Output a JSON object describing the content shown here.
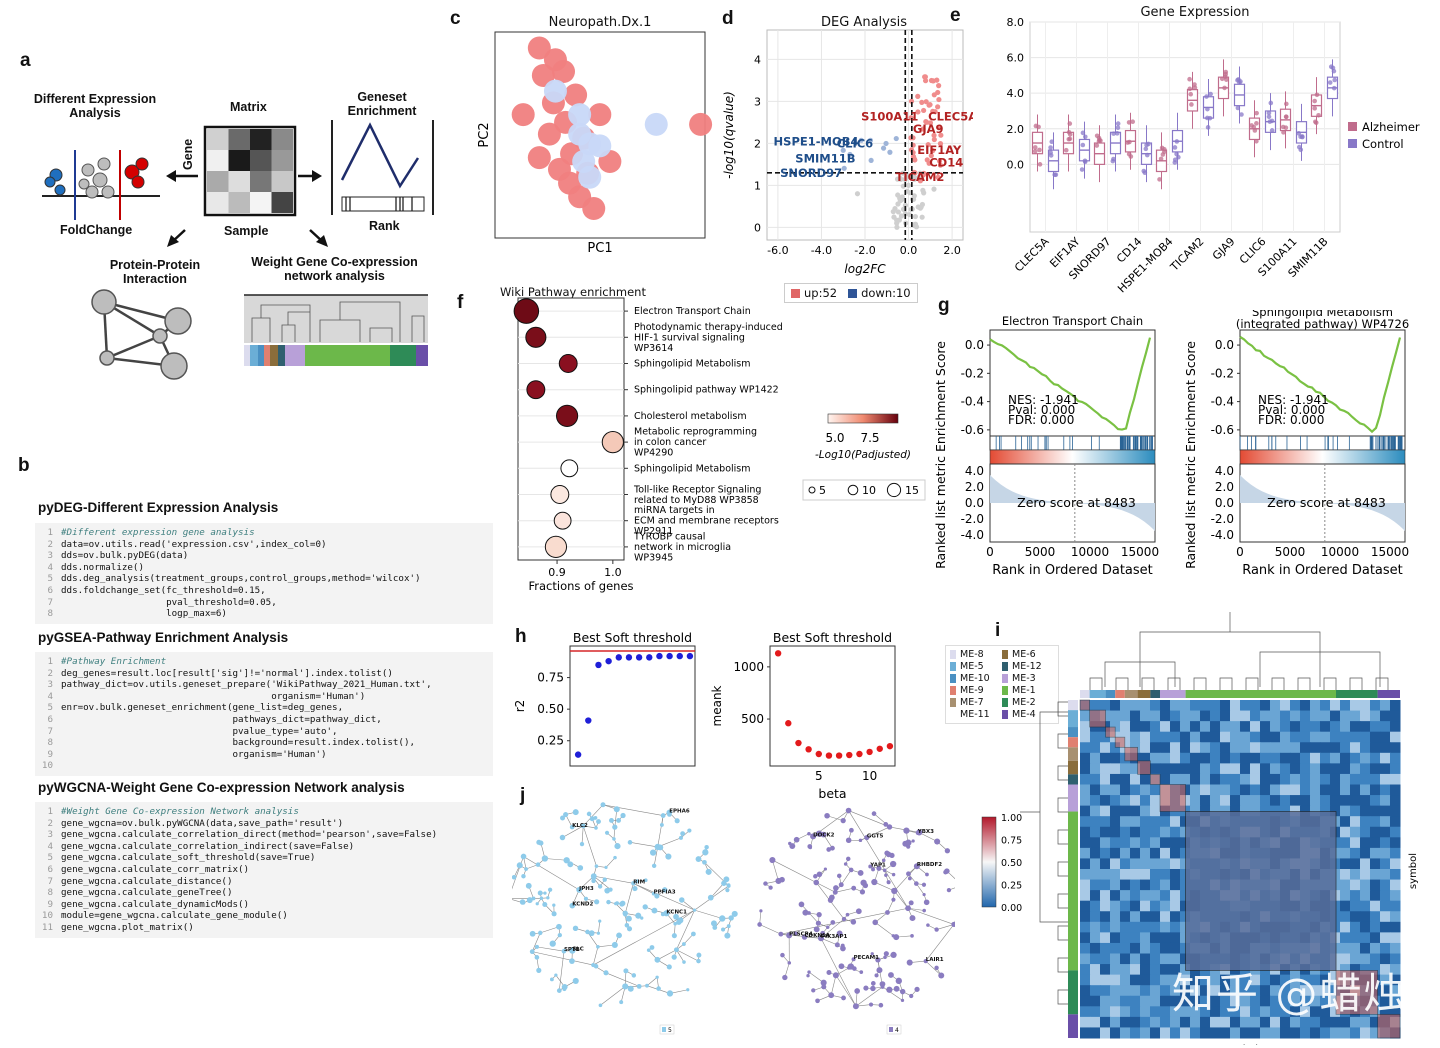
{
  "panels": {
    "a": "a",
    "b": "b",
    "c": "c",
    "d": "d",
    "e": "e",
    "f": "f",
    "g": "g",
    "h": "h",
    "i": "i",
    "j": "j"
  },
  "panel_a": {
    "diff_expr": "Different Expression\nAnalysis",
    "matrix": "Matrix",
    "geneset": "Geneset\nEnrichment",
    "gene": "Gene",
    "sample": "Sample",
    "foldchange": "FoldChange",
    "rank": "Rank",
    "ppi": "Protein-Protein\nInteraction",
    "wgcna": "Weight Gene Co-expression\nnetwork analysis"
  },
  "code_sections": [
    {
      "header": "pyDEG-Different Expression Analysis",
      "lines": [
        "#Different expression gene analysis",
        "data=ov.utils.read('expression.csv',index_col=0)",
        "dds=ov.bulk.pyDEG(data)",
        "dds.normalize()",
        "dds.deg_analysis(treatment_groups,control_groups,method='wilcox')",
        "dds.foldchange_set(fc_threshold=0.15,",
        "                   pval_threshold=0.05,",
        "                   logp_max=6)"
      ]
    },
    {
      "header": "pyGSEA-Pathway Enrichment Analysis",
      "lines": [
        "#Pathway Enrichment",
        "deg_genes=result.loc[result['sig']!='normal'].index.tolist()",
        "pathway_dict=ov.utils.geneset_prepare('WikiPathway_2021_Human.txt',",
        "                                      organism='Human')",
        "enr=ov.bulk.geneset_enrichment(gene_list=deg_genes,",
        "                               pathways_dict=pathway_dict,",
        "                               pvalue_type='auto',",
        "                               background=result.index.tolist(),",
        "                               organism='Human')",
        ""
      ]
    },
    {
      "header": "pyWGCNA-Weight Gene Co-expression Network analysis",
      "lines": [
        "#Weight Gene Co-expression Network analysis",
        "gene_wgcna=ov.bulk.pyWGCNA(data,save_path='result')",
        "gene_wgcna.calculate_correlation_direct(method='pearson',save=False)",
        "gene_wgcna.calculate_correlation_indirect(save=False)",
        "gene_wgcna.calculate_soft_threshold(save=True)",
        "gene_wgcna.calculate_corr_matrix()",
        "gene_wgcna.calculate_distance()",
        "gene_wgcna.calculate_geneTree()",
        "gene_wgcna.calculate_dynamicMods()",
        "module=gene_wgcna.calculate_gene_module()",
        "gene_wgcna.plot_matrix()"
      ]
    }
  ],
  "chart_data": [
    {
      "id": "c",
      "type": "scatter",
      "title": "Neuropath.Dx.1",
      "xlabel": "PC1",
      "ylabel": "PC2",
      "series": [
        {
          "color": "#f08080",
          "points": [
            [
              0.2,
              0.94
            ],
            [
              0.28,
              0.88
            ],
            [
              0.22,
              0.8
            ],
            [
              0.32,
              0.82
            ],
            [
              0.38,
              0.7
            ],
            [
              0.27,
              0.66
            ],
            [
              0.12,
              0.6
            ],
            [
              0.33,
              0.56
            ],
            [
              0.42,
              0.48
            ],
            [
              0.25,
              0.5
            ],
            [
              0.36,
              0.4
            ],
            [
              0.3,
              0.32
            ],
            [
              0.44,
              0.3
            ],
            [
              0.55,
              0.36
            ],
            [
              0.2,
              0.38
            ],
            [
              0.4,
              0.18
            ],
            [
              0.47,
              0.12
            ],
            [
              1.0,
              0.55
            ],
            [
              0.5,
              0.6
            ],
            [
              0.35,
              0.25
            ]
          ]
        },
        {
          "color": "#c8d8f8",
          "points": [
            [
              0.28,
              0.72
            ],
            [
              0.4,
              0.5
            ],
            [
              0.45,
              0.45
            ],
            [
              0.5,
              0.44
            ],
            [
              0.42,
              0.36
            ],
            [
              0.45,
              0.28
            ],
            [
              0.78,
              0.55
            ],
            [
              0.4,
              0.6
            ]
          ]
        }
      ]
    },
    {
      "id": "d",
      "type": "scatter",
      "title": "DEG Analysis",
      "xlabel": "log2FC",
      "ylabel": "-log10(qvalue)",
      "xticks": [
        "-6.0",
        "-4.0",
        "-2.0",
        "0.0",
        "2.0"
      ],
      "yticks": [
        "0",
        "1",
        "2",
        "3",
        "4"
      ],
      "xlim": [
        -6.5,
        2.5
      ],
      "ylim": [
        -0.3,
        4.7
      ],
      "legend": [
        {
          "label": "up:52",
          "color": "#e06666"
        },
        {
          "label": "down:10",
          "color": "#2f5597"
        }
      ],
      "up_labels": [
        "S100A11",
        "GJA9",
        "CLEC5A",
        "EIF1AY",
        "CD14",
        "TICAM2"
      ],
      "down_labels": [
        "HSPE1-MOB4",
        "CLIC6",
        "SMIM11B",
        "SNORD97"
      ]
    },
    {
      "id": "e",
      "type": "box",
      "title": "Gene Expression",
      "categories": [
        "CLEC5A",
        "EIF1AY",
        "SNORD97",
        "CD14",
        "HSPE1-MOB4",
        "TICAM2",
        "GJA9",
        "CLIC6",
        "S100A11",
        "SMIM11B"
      ],
      "yticks": [
        "8.0",
        "6.0",
        "4.0",
        "2.0",
        "0.0"
      ],
      "ylim": [
        -3.8,
        8.0
      ],
      "series": [
        {
          "name": "Alzheimer",
          "color": "#c06c8c",
          "medians": [
            1.2,
            1.2,
            0.6,
            1.3,
            0.2,
            3.6,
            4.3,
            2.0,
            2.5,
            3.3
          ]
        },
        {
          "name": "Control",
          "color": "#8878c8",
          "medians": [
            0.2,
            0.8,
            1.2,
            0.6,
            1.3,
            3.2,
            3.9,
            2.4,
            1.8,
            4.3
          ]
        }
      ]
    },
    {
      "id": "f",
      "type": "scatter",
      "title": "Wiki Pathway enrichment",
      "xlabel": "Fractions of genes",
      "xticks": [
        "0.9",
        "1.0"
      ],
      "xlim": [
        0.83,
        1.02
      ],
      "colorbar_ticks": [
        "5.0",
        "7.5"
      ],
      "colorbar_label": "-Log10(Padjusted)",
      "size_legend": [
        "5",
        "10",
        "15"
      ],
      "terms": [
        {
          "label": "Electron Transport Chain",
          "x": 0.845,
          "size": 15,
          "color": "#6e0b16"
        },
        {
          "label": "Photodynamic therapy-induced\nHIF-1 survival signaling\nWP3614",
          "x": 0.862,
          "size": 11,
          "color": "#7a0e1a"
        },
        {
          "label": "Sphingolipid Metabolism",
          "x": 0.92,
          "size": 9,
          "color": "#8a1020"
        },
        {
          "label": "Sphingolipid pathway WP1422",
          "x": 0.862,
          "size": 9,
          "color": "#8a1020"
        },
        {
          "label": "Cholesterol metabolism",
          "x": 0.918,
          "size": 12,
          "color": "#7a0e1a"
        },
        {
          "label": "Metabolic reprogramming\nin colon cancer\nWP4290",
          "x": 1.0,
          "size": 12,
          "color": "#f4c9b8"
        },
        {
          "label": "Sphingolipid Metabolism",
          "x": 0.922,
          "size": 8,
          "color": "#ffffff"
        },
        {
          "label": "Toll-like Receptor Signaling\nrelated to MyD88 WP3858",
          "x": 0.905,
          "size": 9,
          "color": "#fbe8e0"
        },
        {
          "label": "miRNA targets in\nECM and membrane receptors\nWP2911",
          "x": 0.91,
          "size": 8,
          "color": "#fbe4dc"
        },
        {
          "label": "TYROBP causal\nnetwork in microglia\nWP3945",
          "x": 0.898,
          "size": 12,
          "color": "#f9dccf"
        }
      ]
    },
    {
      "id": "g1",
      "type": "line",
      "title": "Electron Transport Chain",
      "ylabel": "Ranked list metric Enrichment Score",
      "xlabel": "Rank in Ordered Dataset",
      "xticks": [
        "0",
        "5000",
        "10000",
        "15000"
      ],
      "yticks": [
        "0.0",
        "-0.2",
        "-0.4",
        "-0.6"
      ],
      "bottom_yticks": [
        "4.0",
        "2.0",
        "0.0",
        "-2.0",
        "-4.0"
      ],
      "stats": [
        "NES: -1.941",
        "Pval: 0.000",
        "FDR: 0.000"
      ],
      "zero_note": "Zero score at 8483"
    },
    {
      "id": "g2",
      "type": "line",
      "title": "Sphingolipid Metabolism\n(integrated pathway) WP4726",
      "ylabel": "Ranked list metric Enrichment Score",
      "xlabel": "Rank in Ordered Dataset",
      "xticks": [
        "0",
        "5000",
        "10000",
        "15000"
      ],
      "yticks": [
        "0.0",
        "-0.2",
        "-0.4",
        "-0.6"
      ],
      "bottom_yticks": [
        "4.0",
        "2.0",
        "0.0",
        "-2.0",
        "-4.0"
      ],
      "stats": [
        "NES: -1.941",
        "Pval: 0.000",
        "FDR: 0.000"
      ],
      "zero_note": "Zero score at 8483"
    },
    {
      "id": "h1",
      "type": "scatter",
      "title": "Best Soft threshold",
      "ylabel": "r2",
      "yticks": [
        "0.75",
        "0.50",
        "0.25"
      ],
      "x": [
        1,
        2,
        3,
        4,
        5,
        6,
        7,
        8,
        9,
        10,
        11,
        12
      ],
      "y": [
        0.14,
        0.41,
        0.85,
        0.88,
        0.91,
        0.91,
        0.91,
        0.91,
        0.92,
        0.92,
        0.92,
        0.92
      ]
    },
    {
      "id": "h2",
      "type": "scatter",
      "title": "Best Soft threshold",
      "xlabel": "beta",
      "ylabel": "meank",
      "xticks": [
        "5",
        "10"
      ],
      "yticks": [
        "1000",
        "500"
      ],
      "x": [
        1,
        2,
        3,
        4,
        5,
        6,
        7,
        8,
        9,
        10,
        11,
        12
      ],
      "y": [
        1130,
        460,
        270,
        210,
        165,
        150,
        150,
        155,
        165,
        185,
        215,
        240
      ]
    }
  ],
  "panel_i": {
    "modules": [
      {
        "label": "ME-8",
        "color": "#dcdcee"
      },
      {
        "label": "ME-6",
        "color": "#8a6d3b"
      },
      {
        "label": "ME-5",
        "color": "#6baed6"
      },
      {
        "label": "ME-12",
        "color": "#2f5f6f"
      },
      {
        "label": "ME-10",
        "color": "#4a90c2"
      },
      {
        "label": "ME-3",
        "color": "#b8a0d8"
      },
      {
        "label": "ME-9",
        "color": "#e08070"
      },
      {
        "label": "ME-1",
        "color": "#6cb84a"
      },
      {
        "label": "ME-7",
        "color": "#a89070"
      },
      {
        "label": "ME-2",
        "color": "#2e8b57"
      },
      {
        "label": "ME-11",
        "color": "#ffffff"
      },
      {
        "label": "ME-4",
        "color": "#6a4fa8"
      }
    ],
    "colorbar_ticks": [
      "1.00",
      "0.75",
      "0.50",
      "0.25",
      "0.00"
    ],
    "axis_label": "symbol"
  },
  "panel_j": {
    "left_genes": [
      "RIM",
      "JPH3",
      "PPFIA3",
      "KCNC1",
      "SPTB",
      "KLC2",
      "KCND2",
      "SLC",
      "EPHA6"
    ],
    "right_genes": [
      "PIK3AP1",
      "DOCK2",
      "RHBDF2",
      "LAIR1",
      "CDKN1A",
      "YBX3",
      "PLSCR4",
      "YAP1",
      "PECAM1",
      "GGT5"
    ],
    "left_legend": "5",
    "right_legend": "4",
    "left_color": "#8ecbea",
    "right_color": "#8a7cc0"
  },
  "watermark": "知乎 @蜡烛"
}
